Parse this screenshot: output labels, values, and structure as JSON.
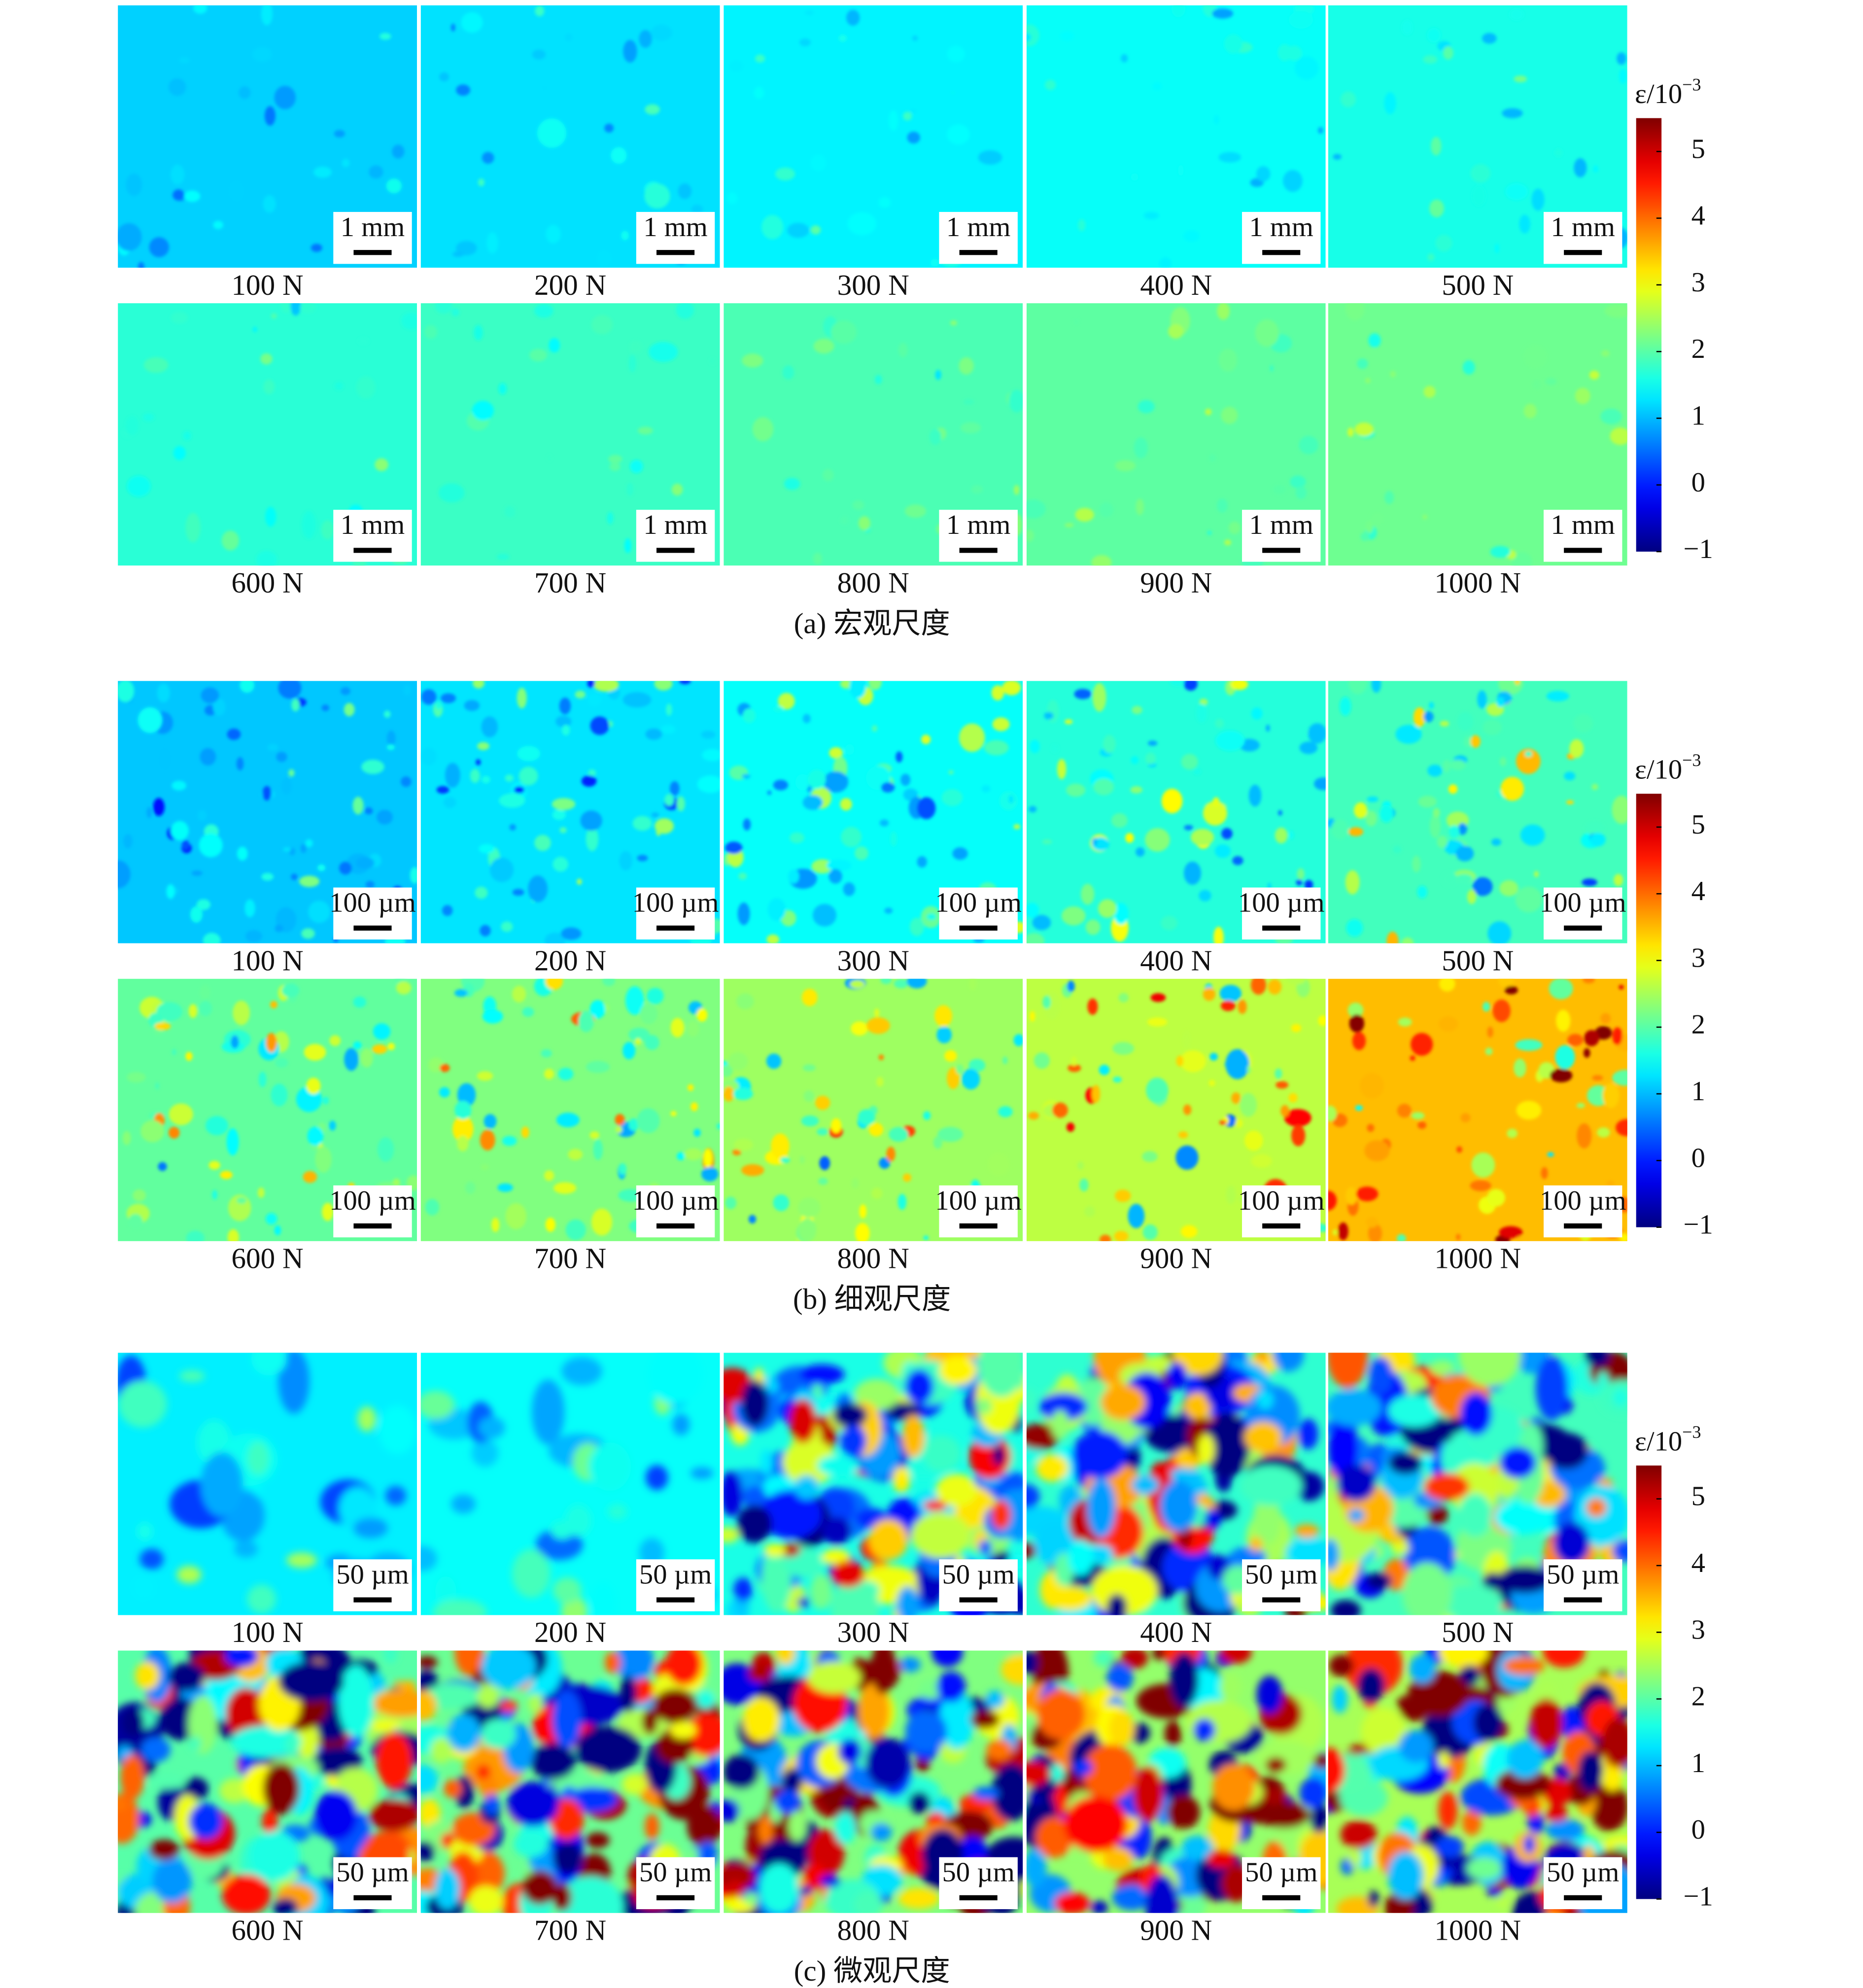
{
  "panels": [
    {
      "caption": "(a) 宏观尺度",
      "scale_bar": "1 mm",
      "loads": [
        "100 N",
        "200 N",
        "300 N",
        "400 N",
        "500 N",
        "600 N",
        "700 N",
        "800 N",
        "900 N",
        "1000 N"
      ],
      "colorbar": {
        "label": "ε/10",
        "label_exponent": "−3",
        "clim": [
          -1,
          5.5
        ],
        "ticks": [
          {
            "value": -1,
            "label": "−1"
          },
          0,
          1,
          2,
          3,
          4,
          5
        ]
      }
    },
    {
      "caption": "(b) 细观尺度",
      "scale_bar": "100 µm",
      "loads": [
        "100 N",
        "200 N",
        "300 N",
        "400 N",
        "500 N",
        "600 N",
        "700 N",
        "800 N",
        "900 N",
        "1000 N"
      ],
      "colorbar": {
        "label": "ε/10",
        "label_exponent": "−3",
        "clim": [
          -1,
          5.5
        ],
        "ticks": [
          {
            "value": -1,
            "label": "−1"
          },
          0,
          1,
          2,
          3,
          4,
          5
        ]
      }
    },
    {
      "caption": "(c) 微观尺度",
      "scale_bar": "50 µm",
      "loads": [
        "100 N",
        "200 N",
        "300 N",
        "400 N",
        "500 N",
        "600 N",
        "700 N",
        "800 N",
        "900 N",
        "1000 N"
      ],
      "colorbar": {
        "label": "ε/10",
        "label_exponent": "−3",
        "clim": [
          -1,
          5.5
        ],
        "ticks": [
          {
            "value": -1,
            "label": "−1"
          },
          0,
          1,
          2,
          3,
          4,
          5
        ]
      }
    }
  ]
}
